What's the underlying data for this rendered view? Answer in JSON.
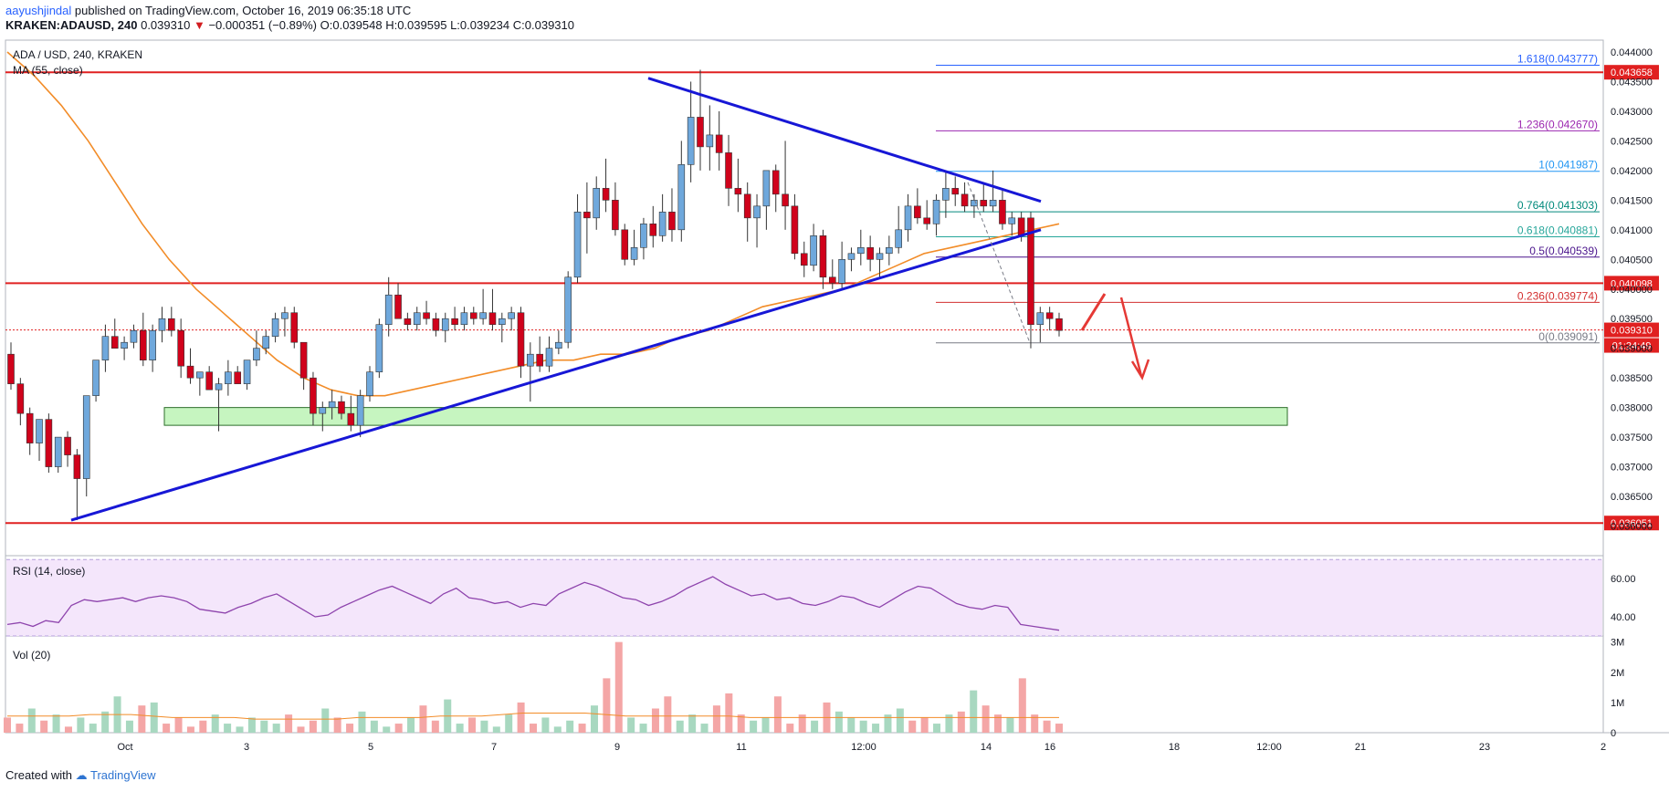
{
  "header": {
    "author": "aayushjindal",
    "published": " published on TradingView.com, October 16, 2019 06:35:18 UTC",
    "symbol": "KRAKEN:ADAUSD, 240",
    "last": "0.039310",
    "arrow": "▼",
    "change": "−0.000351 (−0.89%)",
    "open": "O:0.039548",
    "high": "H:0.039595",
    "low": "L:0.039234",
    "close": "C:0.039310"
  },
  "footer": {
    "created": "Created with",
    "brand": "TradingView"
  },
  "chart_data": [
    {
      "type": "candlestick",
      "title": "ADA / USD, 240, KRAKEN",
      "indicator": "MA (55, close)",
      "y_ticks": [
        "0.044000",
        "0.043500",
        "0.043000",
        "0.042500",
        "0.042000",
        "0.041500",
        "0.041000",
        "0.040500",
        "0.040000",
        "0.039500",
        "0.039000",
        "0.038500",
        "0.038000",
        "0.037500",
        "0.037000",
        "0.036500",
        "0.036000"
      ],
      "ylim": [
        0.0355,
        0.0442
      ],
      "x_ticks": [
        "Oct",
        "3",
        "5",
        "7",
        "9",
        "11",
        "12:00",
        "14",
        "16",
        "18",
        "12:00",
        "21",
        "23",
        "2"
      ],
      "horizontal_levels": [
        0.043658,
        0.040098,
        0.036051
      ],
      "level_labels": [
        "0.043658",
        "0.040098",
        "0.036051"
      ],
      "last_price": "0.039310",
      "countdown": "01:24:49",
      "support_zone": [
        0.0377,
        0.038
      ],
      "fibonacci": [
        {
          "label": "1.618(0.043777)",
          "value": 0.043777,
          "color": "#2962ff"
        },
        {
          "label": "1.236(0.042670)",
          "value": 0.04267,
          "color": "#9c27b0"
        },
        {
          "label": "1(0.041987)",
          "value": 0.041987,
          "color": "#2196f3"
        },
        {
          "label": "0.764(0.041303)",
          "value": 0.041303,
          "color": "#00897b"
        },
        {
          "label": "0.618(0.040881)",
          "value": 0.040881,
          "color": "#26a69a"
        },
        {
          "label": "0.5(0.040539)",
          "value": 0.040539,
          "color": "#4a148c"
        },
        {
          "label": "0.236(0.039774)",
          "value": 0.039774,
          "color": "#d32f2f"
        },
        {
          "label": "0(0.039091)",
          "value": 0.039091,
          "color": "#787b86"
        }
      ],
      "trendlines": [
        {
          "name": "upper",
          "from": [
            0,
            0.043558
          ],
          "to": [
            93,
            0.04148
          ]
        },
        {
          "name": "lower",
          "from": [
            0,
            0.0361
          ],
          "to": [
            93,
            0.041
          ]
        }
      ],
      "candles_ohlc": [
        [
          0.0389,
          0.0391,
          0.0383,
          0.0384
        ],
        [
          0.0384,
          0.0385,
          0.0377,
          0.0379
        ],
        [
          0.0379,
          0.038,
          0.0372,
          0.0374
        ],
        [
          0.0374,
          0.0378,
          0.0371,
          0.0378
        ],
        [
          0.0378,
          0.0379,
          0.0369,
          0.037
        ],
        [
          0.037,
          0.0375,
          0.0369,
          0.0375
        ],
        [
          0.0375,
          0.0376,
          0.037,
          0.0372
        ],
        [
          0.0372,
          0.0373,
          0.0361,
          0.0368
        ],
        [
          0.0368,
          0.0382,
          0.0365,
          0.0382
        ],
        [
          0.0382,
          0.0388,
          0.0381,
          0.0388
        ],
        [
          0.0388,
          0.0394,
          0.0386,
          0.0392
        ],
        [
          0.0392,
          0.0395,
          0.039,
          0.039
        ],
        [
          0.039,
          0.0392,
          0.0388,
          0.0391
        ],
        [
          0.0391,
          0.0394,
          0.039,
          0.0393
        ],
        [
          0.0393,
          0.0396,
          0.0387,
          0.0388
        ],
        [
          0.0388,
          0.0394,
          0.0386,
          0.0393
        ],
        [
          0.0393,
          0.0397,
          0.0391,
          0.0395
        ],
        [
          0.0395,
          0.0397,
          0.0392,
          0.0393
        ],
        [
          0.0393,
          0.0395,
          0.0385,
          0.0387
        ],
        [
          0.0387,
          0.039,
          0.0384,
          0.0385
        ],
        [
          0.0385,
          0.0386,
          0.0382,
          0.0386
        ],
        [
          0.0386,
          0.0387,
          0.0383,
          0.0383
        ],
        [
          0.0383,
          0.0385,
          0.0376,
          0.0384
        ],
        [
          0.0384,
          0.0388,
          0.0382,
          0.0386
        ],
        [
          0.0386,
          0.0387,
          0.0384,
          0.0384
        ],
        [
          0.0384,
          0.0388,
          0.0383,
          0.0388
        ],
        [
          0.0388,
          0.0393,
          0.0387,
          0.039
        ],
        [
          0.039,
          0.0393,
          0.0389,
          0.0392
        ],
        [
          0.0392,
          0.0396,
          0.0391,
          0.0395
        ],
        [
          0.0395,
          0.0397,
          0.0392,
          0.0396
        ],
        [
          0.0396,
          0.0397,
          0.039,
          0.0391
        ],
        [
          0.0391,
          0.0391,
          0.0383,
          0.0385
        ],
        [
          0.0385,
          0.0386,
          0.0377,
          0.0379
        ],
        [
          0.0379,
          0.0381,
          0.0376,
          0.038
        ],
        [
          0.038,
          0.0383,
          0.0378,
          0.0381
        ],
        [
          0.0381,
          0.0382,
          0.0378,
          0.0379
        ],
        [
          0.0379,
          0.0382,
          0.0376,
          0.0377
        ],
        [
          0.0377,
          0.0383,
          0.0375,
          0.0382
        ],
        [
          0.0382,
          0.0387,
          0.0381,
          0.0386
        ],
        [
          0.0386,
          0.0395,
          0.0385,
          0.0394
        ],
        [
          0.0394,
          0.0402,
          0.0392,
          0.0399
        ],
        [
          0.0399,
          0.0401,
          0.0395,
          0.0395
        ],
        [
          0.0395,
          0.0396,
          0.0393,
          0.0394
        ],
        [
          0.0394,
          0.0397,
          0.0393,
          0.0396
        ],
        [
          0.0396,
          0.0398,
          0.0394,
          0.0395
        ],
        [
          0.0395,
          0.0396,
          0.0392,
          0.0393
        ],
        [
          0.0393,
          0.0396,
          0.0391,
          0.0395
        ],
        [
          0.0395,
          0.0397,
          0.0393,
          0.0394
        ],
        [
          0.0394,
          0.0397,
          0.0393,
          0.0396
        ],
        [
          0.0396,
          0.0397,
          0.0394,
          0.0395
        ],
        [
          0.0395,
          0.04,
          0.0394,
          0.0396
        ],
        [
          0.0396,
          0.04,
          0.0393,
          0.0394
        ],
        [
          0.0394,
          0.0396,
          0.0391,
          0.0395
        ],
        [
          0.0395,
          0.0397,
          0.0393,
          0.0396
        ],
        [
          0.0396,
          0.0397,
          0.0385,
          0.0387
        ],
        [
          0.0387,
          0.0391,
          0.0381,
          0.0389
        ],
        [
          0.0389,
          0.0392,
          0.0386,
          0.0387
        ],
        [
          0.0387,
          0.0392,
          0.0386,
          0.039
        ],
        [
          0.039,
          0.0393,
          0.0389,
          0.0391
        ],
        [
          0.0391,
          0.0403,
          0.039,
          0.0402
        ],
        [
          0.0402,
          0.0416,
          0.0401,
          0.0413
        ],
        [
          0.0413,
          0.0418,
          0.0406,
          0.0412
        ],
        [
          0.0412,
          0.0419,
          0.041,
          0.0417
        ],
        [
          0.0417,
          0.0422,
          0.0413,
          0.0415
        ],
        [
          0.0415,
          0.0418,
          0.0409,
          0.041
        ],
        [
          0.041,
          0.0411,
          0.0404,
          0.0405
        ],
        [
          0.0405,
          0.041,
          0.0404,
          0.0407
        ],
        [
          0.0407,
          0.0412,
          0.0405,
          0.0411
        ],
        [
          0.0411,
          0.0414,
          0.0407,
          0.0409
        ],
        [
          0.0409,
          0.0416,
          0.0408,
          0.0413
        ],
        [
          0.0413,
          0.0417,
          0.0408,
          0.041
        ],
        [
          0.041,
          0.0425,
          0.0408,
          0.0421
        ],
        [
          0.0421,
          0.0435,
          0.0418,
          0.0429
        ],
        [
          0.0429,
          0.0437,
          0.042,
          0.0424
        ],
        [
          0.0424,
          0.0431,
          0.042,
          0.0426
        ],
        [
          0.0426,
          0.043,
          0.042,
          0.0423
        ],
        [
          0.0423,
          0.0426,
          0.0414,
          0.0417
        ],
        [
          0.0417,
          0.0422,
          0.0413,
          0.0416
        ],
        [
          0.0416,
          0.0418,
          0.0408,
          0.0412
        ],
        [
          0.0412,
          0.0416,
          0.0407,
          0.0414
        ],
        [
          0.0414,
          0.0418,
          0.041,
          0.042
        ],
        [
          0.042,
          0.0421,
          0.0413,
          0.0416
        ],
        [
          0.0416,
          0.0425,
          0.041,
          0.0414
        ],
        [
          0.0414,
          0.0416,
          0.0405,
          0.0406
        ],
        [
          0.0406,
          0.0408,
          0.0402,
          0.0404
        ],
        [
          0.0404,
          0.0411,
          0.0403,
          0.0409
        ],
        [
          0.0409,
          0.041,
          0.04,
          0.0402
        ],
        [
          0.0402,
          0.0405,
          0.04,
          0.0401
        ],
        [
          0.0401,
          0.0408,
          0.04,
          0.0405
        ],
        [
          0.0405,
          0.0407,
          0.0403,
          0.0406
        ],
        [
          0.0406,
          0.041,
          0.0404,
          0.0407
        ],
        [
          0.0407,
          0.0409,
          0.0403,
          0.0405
        ],
        [
          0.0405,
          0.0407,
          0.0402,
          0.0406
        ],
        [
          0.0406,
          0.0409,
          0.0404,
          0.0407
        ],
        [
          0.0407,
          0.0414,
          0.0406,
          0.041
        ],
        [
          0.041,
          0.0416,
          0.0408,
          0.0414
        ],
        [
          0.0414,
          0.0417,
          0.0411,
          0.0412
        ],
        [
          0.0412,
          0.0415,
          0.041,
          0.0411
        ],
        [
          0.0411,
          0.0416,
          0.0409,
          0.0415
        ],
        [
          0.0415,
          0.042,
          0.0412,
          0.0417
        ],
        [
          0.0417,
          0.0419,
          0.0414,
          0.0416
        ],
        [
          0.0416,
          0.0418,
          0.0413,
          0.0414
        ],
        [
          0.0414,
          0.0416,
          0.0412,
          0.0415
        ],
        [
          0.0415,
          0.0418,
          0.0413,
          0.0414
        ],
        [
          0.0414,
          0.042,
          0.0413,
          0.0415
        ],
        [
          0.0415,
          0.0417,
          0.041,
          0.0411
        ],
        [
          0.0411,
          0.0413,
          0.0409,
          0.0412
        ],
        [
          0.0412,
          0.0413,
          0.0408,
          0.0409
        ],
        [
          0.0412,
          0.0413,
          0.039,
          0.0394
        ],
        [
          0.0394,
          0.0397,
          0.0391,
          0.0396
        ],
        [
          0.0396,
          0.0397,
          0.0393,
          0.0395
        ],
        [
          0.0395,
          0.0396,
          0.0392,
          0.0393
        ]
      ],
      "ma55": [
        0.044,
        0.0436,
        0.0431,
        0.0425,
        0.0418,
        0.0411,
        0.0405,
        0.04,
        0.0396,
        0.0392,
        0.0388,
        0.0385,
        0.0383,
        0.0382,
        0.0382,
        0.0383,
        0.0384,
        0.0385,
        0.0386,
        0.0387,
        0.0388,
        0.0388,
        0.0389,
        0.0389,
        0.039,
        0.0392,
        0.0393,
        0.0395,
        0.0397,
        0.0398,
        0.0399,
        0.04,
        0.0402,
        0.0404,
        0.0406,
        0.0407,
        0.0408,
        0.0409,
        0.041,
        0.0411
      ]
    },
    {
      "type": "line",
      "title": "RSI (14, close)",
      "y_ticks": [
        "60.00",
        "40.00"
      ],
      "ylim": [
        30,
        72
      ],
      "values": [
        36,
        37,
        35,
        38,
        37,
        46,
        49,
        48,
        49,
        50,
        48,
        50,
        51,
        50,
        48,
        44,
        43,
        42,
        45,
        47,
        50,
        52,
        48,
        44,
        40,
        41,
        45,
        48,
        51,
        54,
        56,
        53,
        50,
        47,
        52,
        55,
        50,
        49,
        47,
        48,
        45,
        47,
        46,
        52,
        55,
        58,
        56,
        53,
        50,
        49,
        46,
        48,
        51,
        55,
        58,
        61,
        57,
        54,
        51,
        52,
        49,
        50,
        47,
        46,
        48,
        51,
        50,
        47,
        45,
        49,
        53,
        56,
        55,
        51,
        47,
        45,
        44,
        46,
        45,
        36,
        35,
        34,
        33
      ]
    },
    {
      "type": "bar",
      "title": "Vol (20)",
      "y_ticks": [
        "3M",
        "2M",
        "1M",
        "0"
      ],
      "ylim": [
        0,
        3.2
      ],
      "values": [
        0.5,
        0.3,
        0.8,
        0.4,
        0.6,
        0.2,
        0.5,
        0.3,
        0.7,
        1.2,
        0.4,
        0.9,
        1.0,
        0.3,
        0.5,
        0.2,
        0.4,
        0.6,
        0.3,
        0.2,
        0.5,
        0.4,
        0.3,
        0.6,
        0.2,
        0.4,
        0.8,
        0.5,
        0.3,
        0.7,
        0.4,
        0.2,
        0.3,
        0.5,
        0.9,
        0.4,
        1.1,
        0.3,
        0.5,
        0.4,
        0.2,
        0.6,
        1.0,
        0.3,
        0.5,
        0.2,
        0.4,
        0.3,
        0.9,
        1.8,
        3.0,
        0.5,
        0.3,
        0.8,
        1.2,
        0.4,
        0.6,
        0.3,
        0.9,
        1.3,
        0.6,
        0.4,
        0.5,
        1.2,
        0.3,
        0.6,
        0.4,
        1.0,
        0.7,
        0.5,
        0.4,
        0.3,
        0.6,
        0.8,
        0.4,
        0.5,
        0.3,
        0.6,
        0.7,
        1.4,
        0.9,
        0.6,
        0.5,
        1.8,
        0.6,
        0.4,
        0.3
      ],
      "ma": [
        0.55,
        0.55,
        0.55,
        0.55,
        0.6,
        0.6,
        0.6,
        0.55,
        0.5,
        0.5,
        0.5,
        0.5,
        0.45,
        0.45,
        0.45,
        0.45,
        0.45,
        0.5,
        0.5,
        0.5,
        0.5,
        0.55,
        0.55,
        0.55,
        0.6,
        0.65,
        0.65,
        0.65,
        0.65,
        0.6,
        0.55,
        0.55,
        0.55,
        0.55,
        0.55,
        0.55,
        0.5,
        0.5,
        0.5,
        0.5,
        0.5,
        0.5,
        0.5,
        0.5,
        0.5,
        0.5,
        0.5,
        0.5,
        0.5,
        0.5,
        0.5,
        0.5
      ]
    }
  ],
  "colors": {
    "up": "#6fa8dc",
    "down": "#d0021b",
    "ma": "#f28c28",
    "trend": "#1717d6",
    "level": "#e02020",
    "zone": "#c6f5c0",
    "rsi": "#8e44ad",
    "rsiBand": "#f4e6fb",
    "volUp": "#a8d8c0",
    "volDown": "#f4a6a6"
  }
}
